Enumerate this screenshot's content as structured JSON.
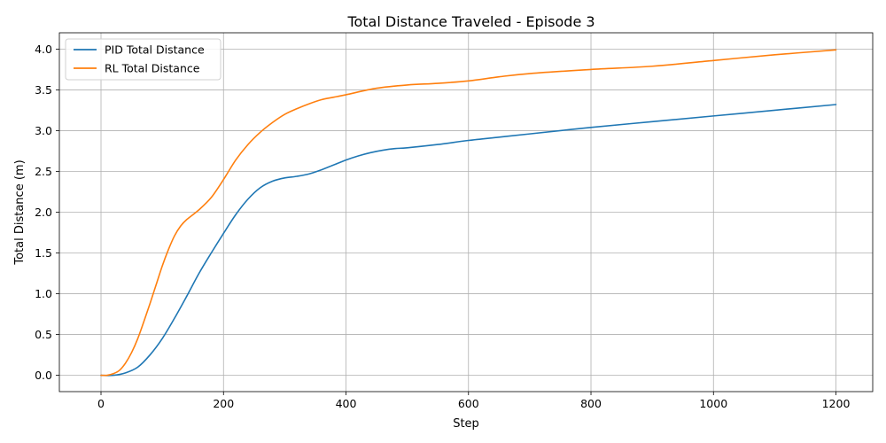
{
  "chart_data": {
    "type": "line",
    "title": "Total Distance Traveled - Episode 3",
    "xlabel": "Step",
    "ylabel": "Total Distance (m)",
    "xlim": [
      -68,
      1260
    ],
    "ylim": [
      -0.2,
      4.2
    ],
    "xticks": [
      0,
      200,
      400,
      600,
      800,
      1000,
      1200
    ],
    "yticks": [
      0.0,
      0.5,
      1.0,
      1.5,
      2.0,
      2.5,
      3.0,
      3.5,
      4.0
    ],
    "grid": true,
    "legend_position": "top-left",
    "series": [
      {
        "name": "PID Total Distance",
        "color": "#1f77b4",
        "x": [
          0,
          20,
          40,
          60,
          80,
          100,
          120,
          140,
          160,
          180,
          200,
          220,
          240,
          260,
          280,
          300,
          320,
          340,
          360,
          380,
          400,
          420,
          440,
          460,
          480,
          500,
          550,
          600,
          650,
          700,
          800,
          900,
          1000,
          1100,
          1200
        ],
        "y": [
          0.0,
          0.0,
          0.03,
          0.1,
          0.25,
          0.45,
          0.7,
          0.97,
          1.25,
          1.5,
          1.74,
          1.97,
          2.16,
          2.3,
          2.38,
          2.42,
          2.44,
          2.47,
          2.52,
          2.58,
          2.64,
          2.69,
          2.73,
          2.76,
          2.78,
          2.79,
          2.83,
          2.88,
          2.92,
          2.96,
          3.04,
          3.11,
          3.18,
          3.25,
          3.32
        ]
      },
      {
        "name": "RL Total Distance",
        "color": "#ff7f0e",
        "x": [
          0,
          10,
          20,
          30,
          40,
          50,
          60,
          70,
          80,
          90,
          100,
          110,
          120,
          130,
          140,
          160,
          180,
          200,
          220,
          240,
          260,
          280,
          300,
          320,
          340,
          360,
          380,
          400,
          450,
          500,
          550,
          600,
          650,
          700,
          800,
          900,
          1000,
          1100,
          1200
        ],
        "y": [
          0.0,
          0.0,
          0.02,
          0.06,
          0.15,
          0.28,
          0.45,
          0.66,
          0.88,
          1.11,
          1.34,
          1.54,
          1.71,
          1.83,
          1.91,
          2.03,
          2.18,
          2.4,
          2.64,
          2.83,
          2.98,
          3.1,
          3.2,
          3.27,
          3.33,
          3.38,
          3.41,
          3.44,
          3.52,
          3.56,
          3.58,
          3.61,
          3.66,
          3.7,
          3.75,
          3.79,
          3.86,
          3.93,
          3.99
        ]
      }
    ]
  }
}
